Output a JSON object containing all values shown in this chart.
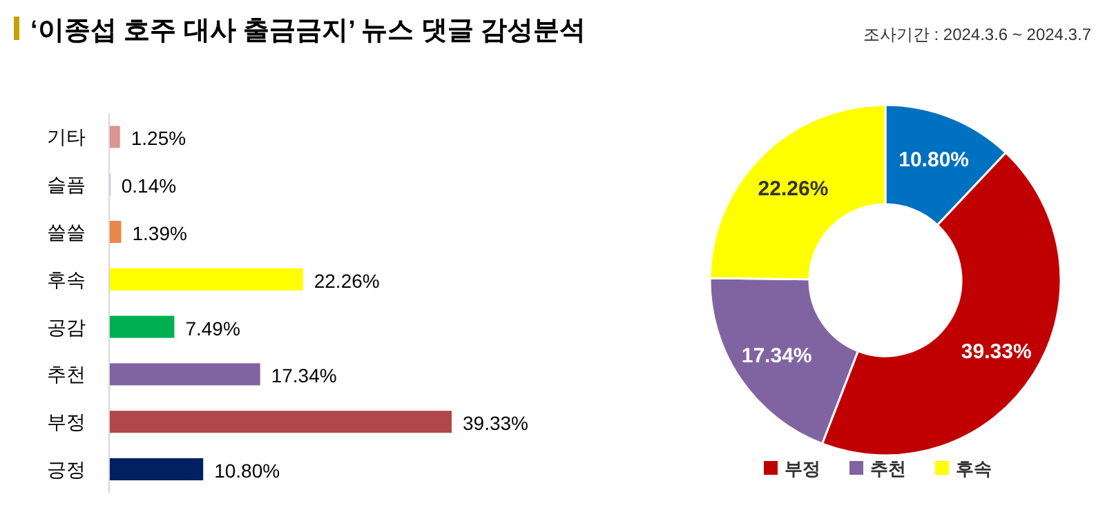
{
  "chart_data": [
    {
      "type": "bar",
      "orientation": "horizontal",
      "title": "‘이종섭 호주 대사 출금금지’ 뉴스 댓글 감성분석",
      "annotations": [
        "조사기간 : 2024.3.6 ~ 2024.3.7"
      ],
      "categories": [
        "기타",
        "슬픔",
        "쓸쓸",
        "후속",
        "공감",
        "추천",
        "부정",
        "긍정"
      ],
      "values": [
        1.25,
        0.14,
        1.39,
        22.26,
        7.49,
        17.34,
        39.33,
        10.8
      ],
      "colors": [
        "#d99694",
        "#8faadc",
        "#e8894a",
        "#ffff00",
        "#00b050",
        "#8064a2",
        "#b0474a",
        "#002060"
      ],
      "value_labels": [
        "1.25%",
        "0.14%",
        "1.39%",
        "22.26%",
        "7.49%",
        "17.34%",
        "39.33%",
        "10.80%"
      ]
    },
    {
      "type": "donut",
      "categories": [
        null,
        "부정",
        "추천",
        "후속"
      ],
      "values": [
        10.8,
        39.33,
        17.34,
        22.26
      ],
      "colors": [
        "#0070c0",
        "#c00000",
        "#8064a2",
        "#ffff00"
      ],
      "value_labels": [
        "10.80%",
        "39.33%",
        "17.34%",
        "22.26%"
      ],
      "legend": "bottom"
    }
  ]
}
